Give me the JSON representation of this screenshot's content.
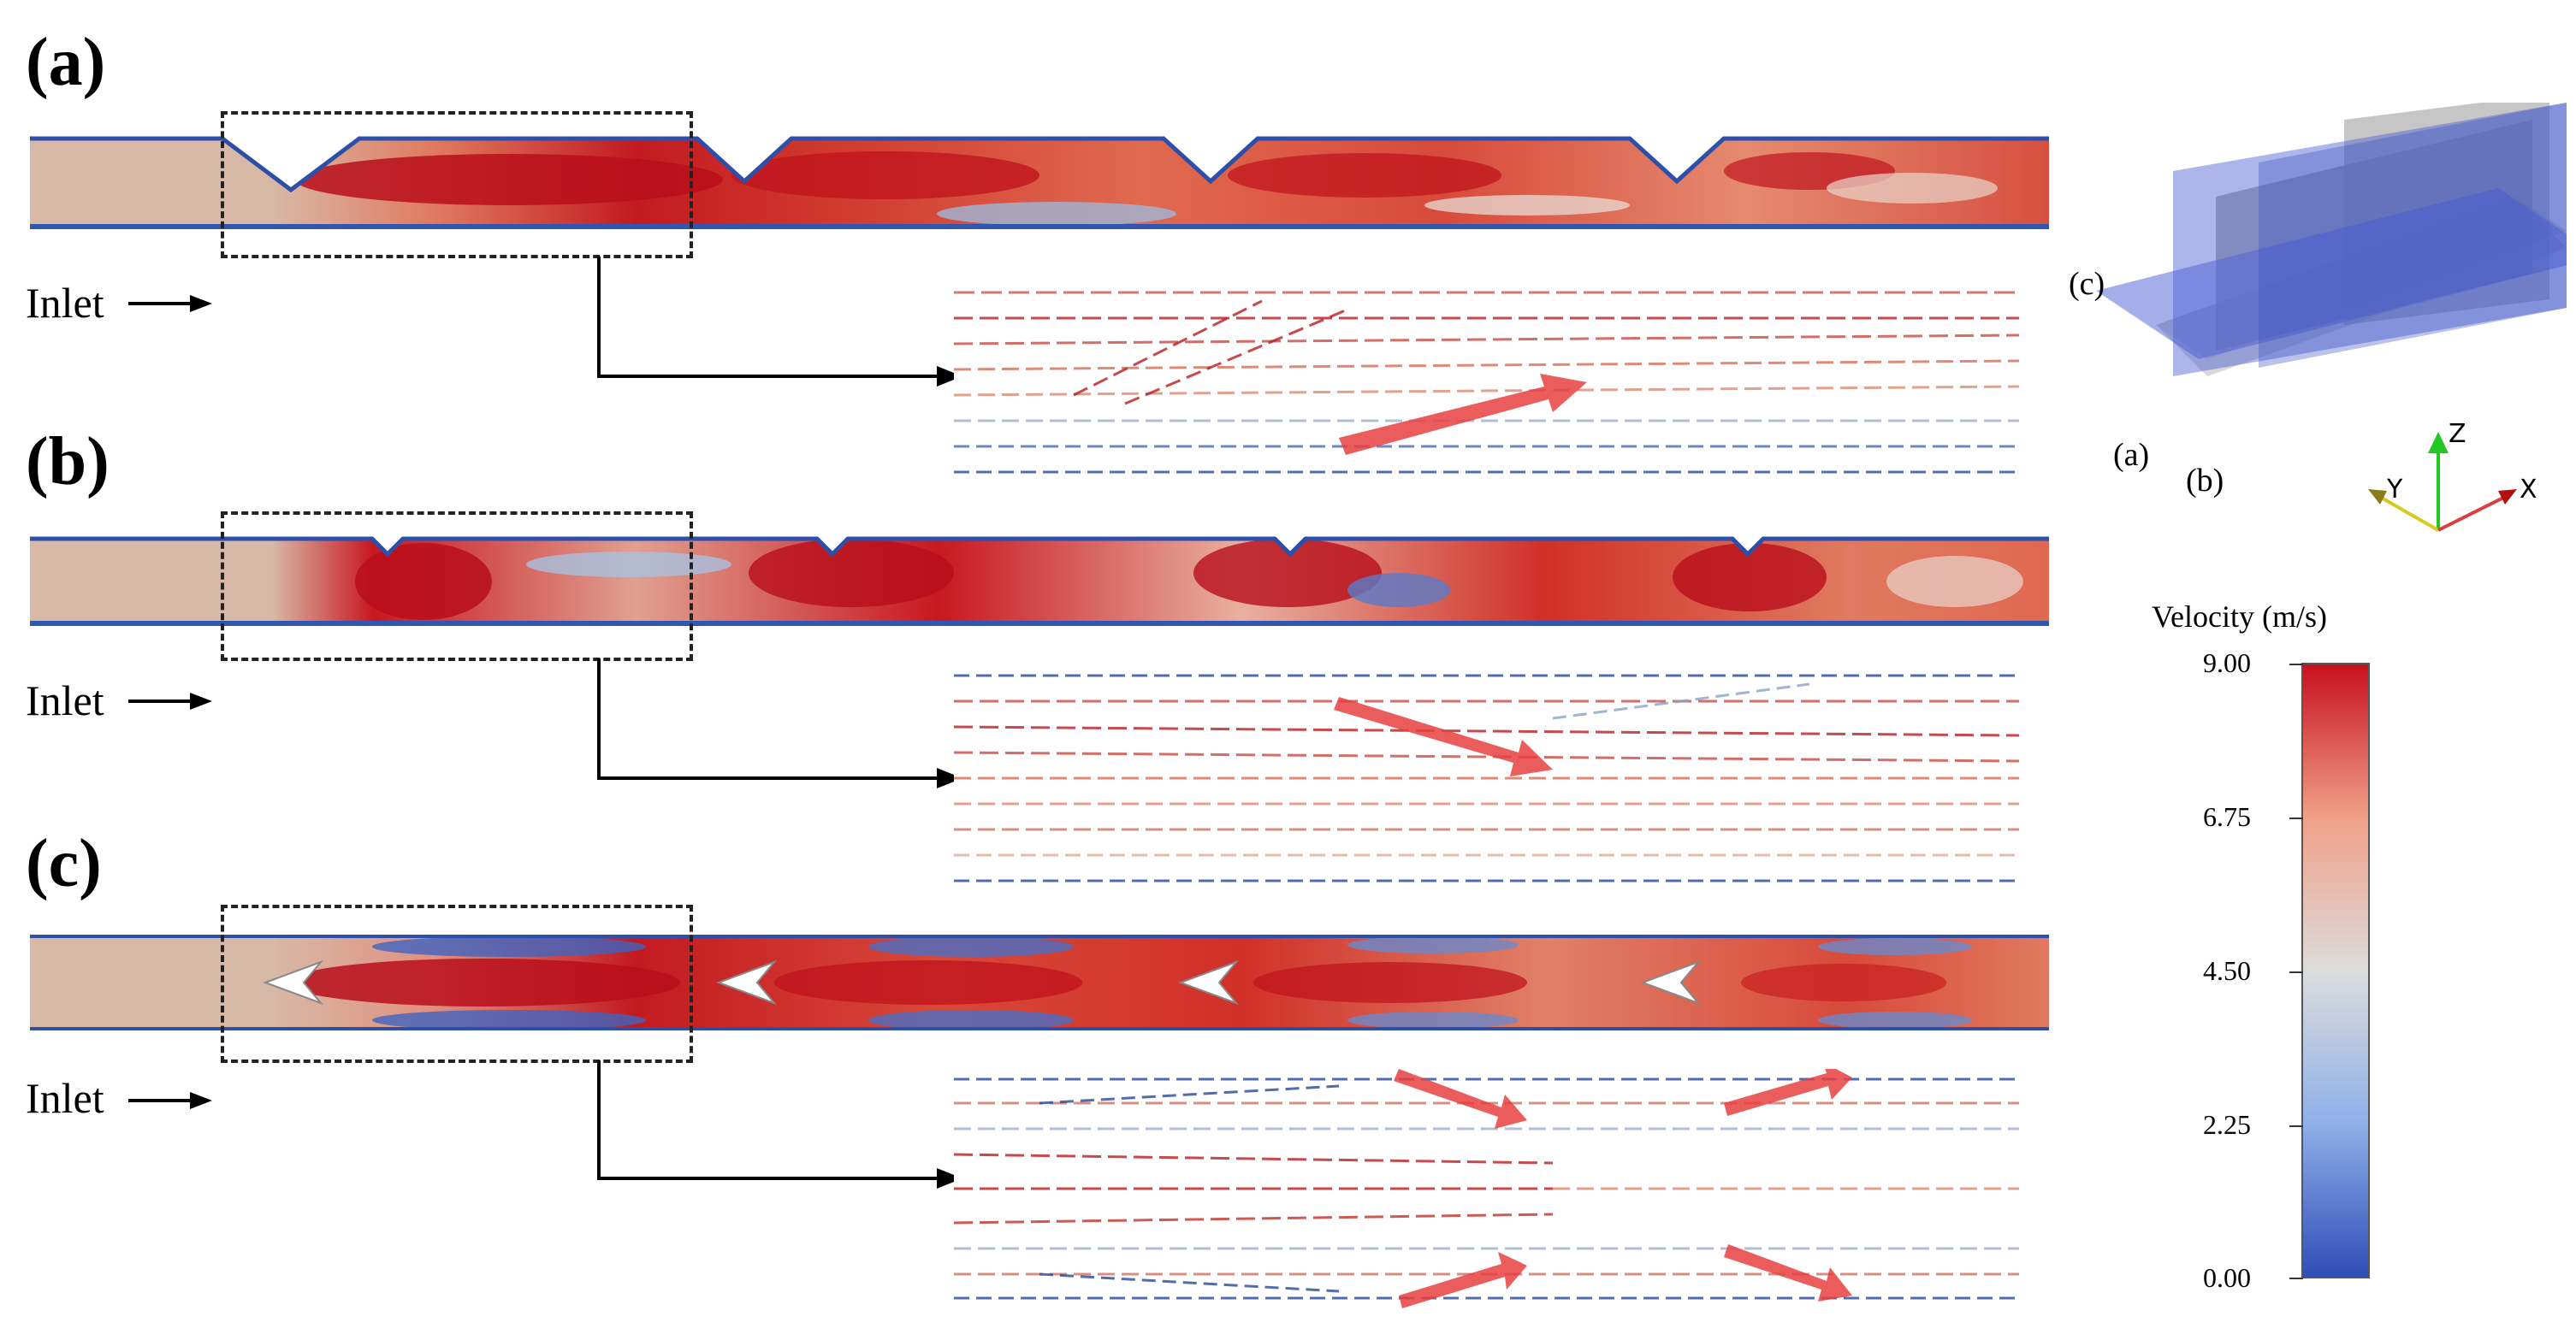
{
  "panels": [
    {
      "label": "(a)",
      "inlet": "Inlet"
    },
    {
      "label": "(b)",
      "inlet": "Inlet"
    },
    {
      "label": "(c)",
      "inlet": "Inlet"
    }
  ],
  "iso_view": {
    "plane_labels": [
      "(c)",
      "(a)",
      "(b)"
    ],
    "axes": [
      "Z",
      "Y",
      "X"
    ]
  },
  "legend": {
    "title": "Velocity (m/s)",
    "ticks": [
      "9.00",
      "6.75",
      "4.50",
      "2.25",
      "0.00"
    ],
    "min": 0,
    "max": 9,
    "colors": {
      "low": "#2f4db8",
      "mid": "#dcdcdc",
      "high": "#c8101e"
    }
  }
}
